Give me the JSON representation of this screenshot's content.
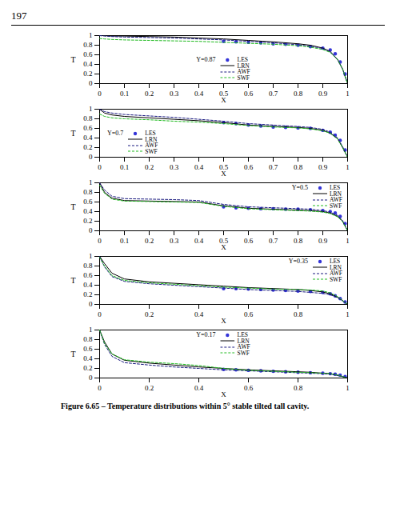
{
  "page": "197",
  "caption": "Figure 6.65 – Temperature distributions within 5° stable tilted tall cavity.",
  "chart_data": [
    {
      "type": "line",
      "title": "Y=0.87",
      "x_label": "X",
      "y_label": "T",
      "xlim": [
        0,
        1
      ],
      "xticks": [
        0,
        0.1,
        0.2,
        0.3,
        0.4,
        0.5,
        0.6,
        0.7,
        0.8,
        0.9,
        1
      ],
      "ylim": [
        0,
        1
      ],
      "yticks": [
        0,
        0.2,
        0.4,
        0.6,
        0.8,
        1
      ],
      "legend": "bottom-center",
      "series": [
        {
          "name": "LES",
          "type": "scatter",
          "marker": "circle",
          "color": "#3434d8",
          "x": [
            0.5,
            0.55,
            0.6,
            0.65,
            0.7,
            0.75,
            0.8,
            0.85,
            0.9,
            0.93,
            0.95,
            0.97,
            0.99
          ],
          "values": [
            0.88,
            0.87,
            0.86,
            0.85,
            0.83,
            0.82,
            0.8,
            0.77,
            0.74,
            0.7,
            0.62,
            0.45,
            0.2
          ]
        },
        {
          "name": "LRN",
          "type": "line",
          "line_style": "solid",
          "color": "#000000",
          "x": [
            0,
            0.02,
            0.05,
            0.1,
            0.2,
            0.3,
            0.4,
            0.5,
            0.6,
            0.7,
            0.8,
            0.85,
            0.9,
            0.93,
            0.96,
            0.98,
            1
          ],
          "values": [
            1,
            1,
            0.99,
            0.99,
            0.98,
            0.97,
            0.95,
            0.93,
            0.9,
            0.87,
            0.83,
            0.8,
            0.74,
            0.67,
            0.5,
            0.3,
            0
          ]
        },
        {
          "name": "AWF",
          "type": "line",
          "line_style": "dashed",
          "color": "#1a1a80",
          "x": [
            0,
            0.02,
            0.05,
            0.1,
            0.2,
            0.3,
            0.4,
            0.5,
            0.6,
            0.7,
            0.8,
            0.85,
            0.9,
            0.93,
            0.96,
            0.98,
            1
          ],
          "values": [
            1,
            0.99,
            0.98,
            0.97,
            0.96,
            0.95,
            0.93,
            0.91,
            0.88,
            0.85,
            0.81,
            0.78,
            0.73,
            0.66,
            0.5,
            0.3,
            0
          ]
        },
        {
          "name": "SWF",
          "type": "line",
          "line_style": "dashed",
          "color": "#22bb22",
          "x": [
            0,
            0.02,
            0.05,
            0.1,
            0.2,
            0.3,
            0.4,
            0.5,
            0.6,
            0.7,
            0.8,
            0.85,
            0.9,
            0.93,
            0.96,
            0.98,
            1
          ],
          "values": [
            0.94,
            0.93,
            0.92,
            0.91,
            0.9,
            0.89,
            0.88,
            0.86,
            0.84,
            0.82,
            0.79,
            0.76,
            0.71,
            0.65,
            0.5,
            0.3,
            0
          ]
        }
      ]
    },
    {
      "type": "line",
      "title": "Y=0.7",
      "x_label": "X",
      "y_label": "T",
      "xlim": [
        0,
        1
      ],
      "xticks": [
        0,
        0.1,
        0.2,
        0.3,
        0.4,
        0.5,
        0.6,
        0.7,
        0.8,
        0.9,
        1
      ],
      "ylim": [
        0,
        1
      ],
      "yticks": [
        0,
        0.2,
        0.4,
        0.6,
        0.8,
        1
      ],
      "legend": "bottom-left",
      "series": [
        {
          "name": "LES",
          "type": "scatter",
          "marker": "circle",
          "color": "#3434d8",
          "x": [
            0.5,
            0.55,
            0.6,
            0.65,
            0.7,
            0.75,
            0.8,
            0.85,
            0.9,
            0.93,
            0.95,
            0.97,
            0.99
          ],
          "values": [
            0.72,
            0.7,
            0.67,
            0.65,
            0.63,
            0.62,
            0.61,
            0.6,
            0.56,
            0.52,
            0.46,
            0.35,
            0.15
          ]
        },
        {
          "name": "LRN",
          "type": "line",
          "line_style": "solid",
          "color": "#000000",
          "x": [
            0,
            0.02,
            0.05,
            0.1,
            0.2,
            0.3,
            0.4,
            0.5,
            0.6,
            0.7,
            0.8,
            0.85,
            0.9,
            0.93,
            0.96,
            0.98,
            1
          ],
          "values": [
            1,
            0.92,
            0.88,
            0.85,
            0.82,
            0.79,
            0.76,
            0.72,
            0.67,
            0.64,
            0.62,
            0.6,
            0.56,
            0.5,
            0.38,
            0.2,
            0
          ]
        },
        {
          "name": "AWF",
          "type": "line",
          "line_style": "dashed",
          "color": "#1a1a80",
          "x": [
            0,
            0.02,
            0.05,
            0.1,
            0.2,
            0.3,
            0.4,
            0.5,
            0.6,
            0.7,
            0.8,
            0.85,
            0.9,
            0.93,
            0.96,
            0.98,
            1
          ],
          "values": [
            1,
            0.95,
            0.92,
            0.89,
            0.86,
            0.83,
            0.79,
            0.75,
            0.7,
            0.67,
            0.64,
            0.62,
            0.58,
            0.52,
            0.4,
            0.22,
            0
          ]
        },
        {
          "name": "SWF",
          "type": "line",
          "line_style": "dashed",
          "color": "#22bb22",
          "x": [
            0,
            0.02,
            0.05,
            0.1,
            0.2,
            0.3,
            0.4,
            0.5,
            0.6,
            0.7,
            0.8,
            0.85,
            0.9,
            0.93,
            0.96,
            0.98,
            1
          ],
          "values": [
            0.9,
            0.85,
            0.82,
            0.8,
            0.78,
            0.75,
            0.73,
            0.7,
            0.66,
            0.63,
            0.61,
            0.59,
            0.55,
            0.5,
            0.38,
            0.2,
            0
          ]
        }
      ]
    },
    {
      "type": "line",
      "title": "Y=0.5",
      "x_label": "X",
      "y_label": "T",
      "xlim": [
        0,
        1
      ],
      "xticks": [
        0,
        0.1,
        0.2,
        0.3,
        0.4,
        0.5,
        0.6,
        0.7,
        0.8,
        0.9,
        1
      ],
      "ylim": [
        0,
        1
      ],
      "yticks": [
        0,
        0.2,
        0.4,
        0.6,
        0.8,
        1
      ],
      "legend": "top-right",
      "series": [
        {
          "name": "LES",
          "type": "scatter",
          "marker": "circle",
          "color": "#3434d8",
          "x": [
            0.5,
            0.55,
            0.6,
            0.65,
            0.7,
            0.75,
            0.8,
            0.85,
            0.9,
            0.93,
            0.95,
            0.97,
            0.99
          ],
          "values": [
            0.5,
            0.48,
            0.47,
            0.46,
            0.46,
            0.45,
            0.45,
            0.44,
            0.42,
            0.4,
            0.37,
            0.3,
            0.15
          ]
        },
        {
          "name": "LRN",
          "type": "line",
          "line_style": "solid",
          "color": "#000000",
          "x": [
            0,
            0.02,
            0.05,
            0.1,
            0.2,
            0.3,
            0.4,
            0.5,
            0.6,
            0.7,
            0.8,
            0.85,
            0.9,
            0.93,
            0.96,
            0.98,
            1
          ],
          "values": [
            1,
            0.8,
            0.68,
            0.63,
            0.62,
            0.61,
            0.6,
            0.52,
            0.47,
            0.45,
            0.43,
            0.42,
            0.4,
            0.37,
            0.3,
            0.2,
            0
          ]
        },
        {
          "name": "AWF",
          "type": "line",
          "line_style": "dashed",
          "color": "#1a1a80",
          "x": [
            0,
            0.02,
            0.05,
            0.1,
            0.2,
            0.3,
            0.4,
            0.5,
            0.6,
            0.7,
            0.8,
            0.85,
            0.9,
            0.93,
            0.96,
            0.98,
            1
          ],
          "values": [
            1,
            0.85,
            0.72,
            0.67,
            0.66,
            0.65,
            0.63,
            0.55,
            0.5,
            0.48,
            0.46,
            0.45,
            0.42,
            0.39,
            0.32,
            0.21,
            0
          ]
        },
        {
          "name": "SWF",
          "type": "line",
          "line_style": "dashed",
          "color": "#22bb22",
          "x": [
            0,
            0.02,
            0.05,
            0.1,
            0.2,
            0.3,
            0.4,
            0.5,
            0.6,
            0.7,
            0.8,
            0.85,
            0.9,
            0.93,
            0.96,
            0.98,
            1
          ],
          "values": [
            0.95,
            0.78,
            0.66,
            0.62,
            0.61,
            0.6,
            0.59,
            0.51,
            0.46,
            0.44,
            0.42,
            0.41,
            0.39,
            0.36,
            0.29,
            0.19,
            0
          ]
        }
      ]
    },
    {
      "type": "line",
      "title": "Y=0.35",
      "x_label": "X",
      "y_label": "T",
      "xlim": [
        0,
        1
      ],
      "xticks": [
        0,
        0.2,
        0.4,
        0.6,
        0.8,
        1
      ],
      "ylim": [
        0,
        1
      ],
      "yticks": [
        0,
        0.2,
        0.4,
        0.6,
        0.8,
        1
      ],
      "legend": "top-right",
      "series": [
        {
          "name": "LES",
          "type": "scatter",
          "marker": "circle",
          "color": "#3434d8",
          "x": [
            0.5,
            0.55,
            0.6,
            0.65,
            0.7,
            0.75,
            0.8,
            0.85,
            0.9,
            0.93,
            0.95,
            0.97,
            0.99
          ],
          "values": [
            0.33,
            0.33,
            0.32,
            0.31,
            0.3,
            0.29,
            0.28,
            0.27,
            0.25,
            0.22,
            0.18,
            0.12,
            0.05
          ]
        },
        {
          "name": "LRN",
          "type": "line",
          "line_style": "solid",
          "color": "#000000",
          "x": [
            0,
            0.02,
            0.05,
            0.1,
            0.2,
            0.3,
            0.4,
            0.5,
            0.6,
            0.7,
            0.8,
            0.85,
            0.9,
            0.93,
            0.96,
            0.98,
            1
          ],
          "values": [
            1,
            0.85,
            0.65,
            0.53,
            0.47,
            0.44,
            0.41,
            0.38,
            0.35,
            0.33,
            0.31,
            0.29,
            0.26,
            0.22,
            0.15,
            0.08,
            0
          ]
        },
        {
          "name": "AWF",
          "type": "line",
          "line_style": "dashed",
          "color": "#1a1a80",
          "x": [
            0,
            0.02,
            0.05,
            0.1,
            0.2,
            0.3,
            0.4,
            0.5,
            0.6,
            0.7,
            0.8,
            0.85,
            0.9,
            0.93,
            0.96,
            0.98,
            1
          ],
          "values": [
            1,
            0.78,
            0.58,
            0.48,
            0.43,
            0.4,
            0.37,
            0.34,
            0.31,
            0.29,
            0.27,
            0.25,
            0.23,
            0.2,
            0.14,
            0.07,
            0
          ]
        },
        {
          "name": "SWF",
          "type": "line",
          "line_style": "dashed",
          "color": "#22bb22",
          "x": [
            0,
            0.02,
            0.05,
            0.1,
            0.2,
            0.3,
            0.4,
            0.5,
            0.6,
            0.7,
            0.8,
            0.85,
            0.9,
            0.93,
            0.96,
            0.98,
            1
          ],
          "values": [
            0.98,
            0.8,
            0.6,
            0.5,
            0.45,
            0.42,
            0.39,
            0.36,
            0.34,
            0.32,
            0.31,
            0.3,
            0.28,
            0.24,
            0.16,
            0.08,
            0
          ]
        }
      ]
    },
    {
      "type": "line",
      "title": "Y=0.17",
      "x_label": "X",
      "y_label": "T",
      "xlim": [
        0,
        1
      ],
      "xticks": [
        0,
        0.2,
        0.4,
        0.6,
        0.8,
        1
      ],
      "ylim": [
        0,
        1
      ],
      "yticks": [
        0,
        0.2,
        0.4,
        0.6,
        0.8,
        1
      ],
      "legend": "top-center",
      "series": [
        {
          "name": "LES",
          "type": "scatter",
          "marker": "circle",
          "color": "#3434d8",
          "x": [
            0.5,
            0.55,
            0.6,
            0.65,
            0.7,
            0.75,
            0.8,
            0.85,
            0.9,
            0.93,
            0.95,
            0.97,
            0.99
          ],
          "values": [
            0.18,
            0.17,
            0.16,
            0.15,
            0.14,
            0.13,
            0.12,
            0.11,
            0.1,
            0.09,
            0.08,
            0.06,
            0.03
          ]
        },
        {
          "name": "LRN",
          "type": "line",
          "line_style": "solid",
          "color": "#000000",
          "x": [
            0,
            0.02,
            0.05,
            0.1,
            0.2,
            0.3,
            0.4,
            0.5,
            0.6,
            0.7,
            0.8,
            0.85,
            0.9,
            0.93,
            0.96,
            0.98,
            1
          ],
          "values": [
            1,
            0.75,
            0.5,
            0.37,
            0.31,
            0.27,
            0.23,
            0.2,
            0.17,
            0.15,
            0.13,
            0.12,
            0.1,
            0.09,
            0.06,
            0.03,
            0
          ]
        },
        {
          "name": "AWF",
          "type": "line",
          "line_style": "dashed",
          "color": "#1a1a80",
          "x": [
            0,
            0.02,
            0.05,
            0.1,
            0.2,
            0.3,
            0.4,
            0.5,
            0.6,
            0.7,
            0.8,
            0.85,
            0.9,
            0.93,
            0.96,
            0.98,
            1
          ],
          "values": [
            1,
            0.7,
            0.45,
            0.32,
            0.27,
            0.23,
            0.2,
            0.17,
            0.15,
            0.13,
            0.11,
            0.1,
            0.09,
            0.08,
            0.05,
            0.03,
            0
          ]
        },
        {
          "name": "SWF",
          "type": "line",
          "line_style": "dashed",
          "color": "#22bb22",
          "x": [
            0,
            0.02,
            0.05,
            0.1,
            0.2,
            0.3,
            0.4,
            0.5,
            0.6,
            0.7,
            0.8,
            0.85,
            0.9,
            0.93,
            0.96,
            0.98,
            1
          ],
          "values": [
            1,
            0.72,
            0.5,
            0.38,
            0.33,
            0.3,
            0.26,
            0.2,
            0.16,
            0.14,
            0.12,
            0.11,
            0.1,
            0.09,
            0.06,
            0.03,
            0
          ]
        }
      ]
    }
  ]
}
